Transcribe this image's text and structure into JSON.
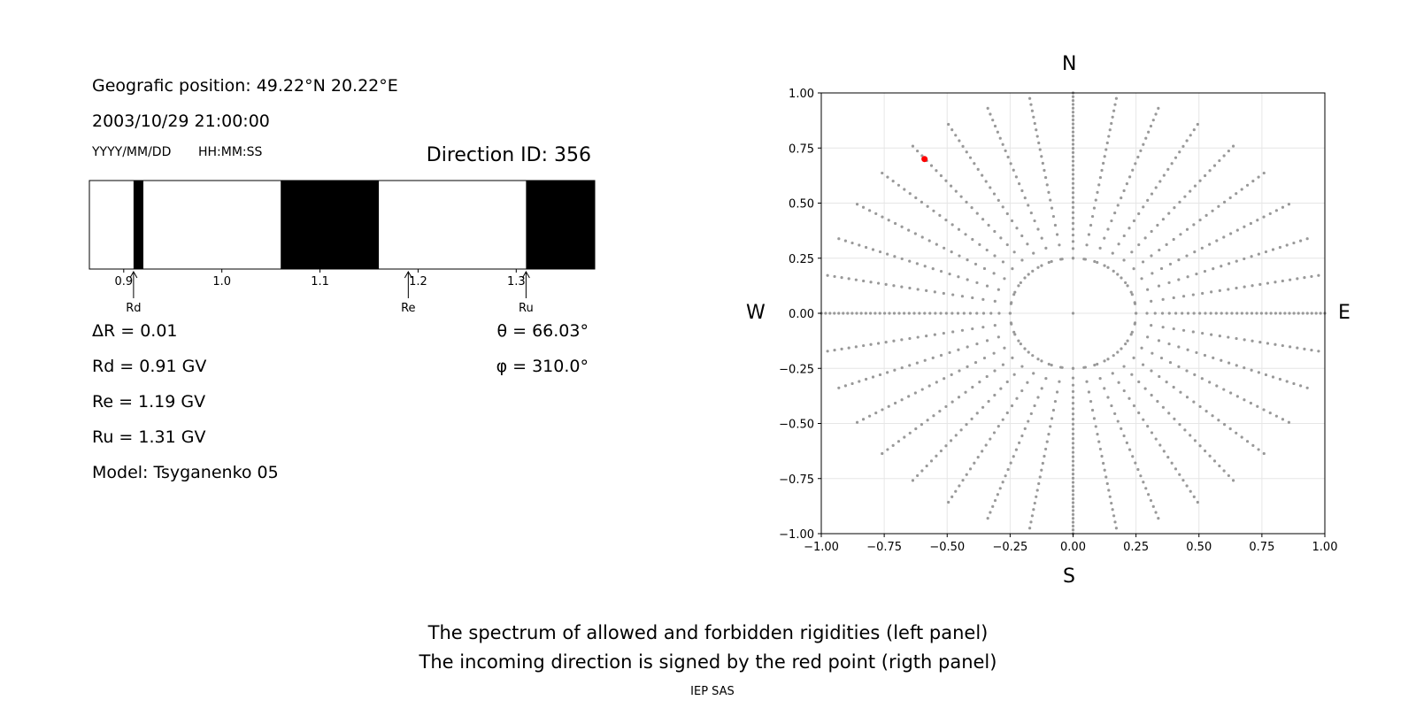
{
  "left_panel": {
    "position_label": "Geografic position: 49.22°N 20.22°E",
    "datetime": "2003/10/29 21:00:00",
    "date_format": "YYYY/MM/DD",
    "time_format": "HH:MM:SS",
    "direction_id": "Direction ID: 356",
    "delta_r": "ΔR = 0.01",
    "rd": "Rd = 0.91 GV",
    "re": "Re = 1.19 GV",
    "ru": "Ru = 1.31 GV",
    "model": "Model: Tsyganenko 05",
    "theta": "θ = 66.03°",
    "phi": "φ = 310.0°"
  },
  "right_panel": {
    "north": "N",
    "south": "S",
    "west": "W",
    "east": "E"
  },
  "caption": {
    "line1": "The spectrum of allowed and forbidden rigidities (left panel)",
    "line2": "The incoming direction is signed by the red point (rigth panel)",
    "footer": "IEP SAS"
  },
  "colors": {
    "allowed": "#ffffff",
    "forbidden": "#000000",
    "grid_points": "#999999",
    "direction_point": "#ff0000"
  },
  "chart_data": [
    {
      "type": "bar",
      "description_kind": "rigidity spectrum band",
      "xlim": [
        0.865,
        1.38
      ],
      "xticks": [
        0.9,
        1.0,
        1.1,
        1.2,
        1.3
      ],
      "forbidden_intervals": [
        [
          0.91,
          0.92
        ],
        [
          1.06,
          1.16
        ],
        [
          1.31,
          1.38
        ]
      ],
      "markers": [
        {
          "label": "Rd",
          "value": 0.91
        },
        {
          "label": "Re",
          "value": 1.19
        },
        {
          "label": "Ru",
          "value": 1.31
        }
      ]
    },
    {
      "type": "scatter",
      "xlim": [
        -1.0,
        1.0
      ],
      "ylim": [
        -1.0,
        1.0
      ],
      "xticks": [
        -1.0,
        -0.75,
        -0.5,
        -0.25,
        0.0,
        0.25,
        0.5,
        0.75,
        1.0
      ],
      "yticks": [
        -1.0,
        -0.75,
        -0.5,
        -0.25,
        0.0,
        0.25,
        0.5,
        0.75,
        1.0
      ],
      "xtick_labels": [
        "−1.00",
        "−0.75",
        "−0.50",
        "−0.25",
        "0.00",
        "0.25",
        "0.50",
        "0.75",
        "1.00"
      ],
      "ytick_labels": [
        "−1.00",
        "−0.75",
        "−0.50",
        "−0.25",
        "0.00",
        "0.25",
        "0.50",
        "0.75",
        "1.00"
      ],
      "grid": true,
      "direction_point": {
        "x": -0.59,
        "y": 0.7
      },
      "azimuth_step_deg": 10,
      "ray_start_radius": 0.25,
      "ray_end_radius": 1.0
    }
  ]
}
